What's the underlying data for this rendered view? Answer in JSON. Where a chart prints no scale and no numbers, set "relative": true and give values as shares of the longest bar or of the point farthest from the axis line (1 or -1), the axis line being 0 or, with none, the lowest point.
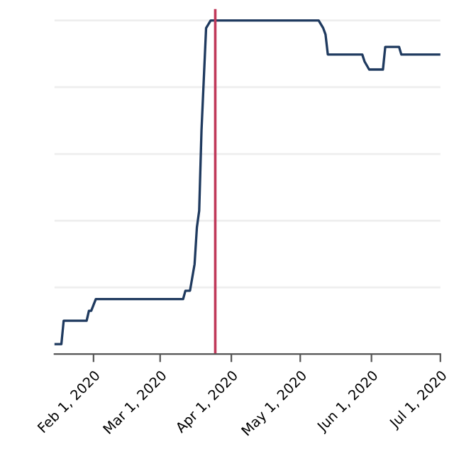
{
  "chart_data": {
    "type": "line",
    "relative": true,
    "grid": "y",
    "x": [
      "2020-01-15",
      "2020-01-18",
      "2020-01-19",
      "2020-01-29",
      "2020-01-30",
      "2020-01-31",
      "2020-02-02",
      "2020-03-11",
      "2020-03-12",
      "2020-03-14",
      "2020-03-16",
      "2020-03-17",
      "2020-03-18",
      "2020-03-19",
      "2020-03-21",
      "2020-03-23",
      "2020-05-09",
      "2020-05-11",
      "2020-05-12",
      "2020-05-13",
      "2020-05-28",
      "2020-05-29",
      "2020-05-31",
      "2020-06-06",
      "2020-06-07",
      "2020-06-13",
      "2020-06-14",
      "2020-07-01"
    ],
    "series": [
      {
        "color": "#1f3a5f",
        "values": [
          0.03,
          0.03,
          0.1,
          0.1,
          0.13,
          0.13,
          0.165,
          0.165,
          0.19,
          0.19,
          0.27,
          0.38,
          0.43,
          0.67,
          0.977,
          1,
          1,
          0.977,
          0.958,
          0.898,
          0.898,
          0.877,
          0.853,
          0.853,
          0.921,
          0.921,
          0.898,
          0.898
        ]
      }
    ],
    "xlim": [
      "2020-01-15",
      "2020-07-01"
    ],
    "xticks": [
      {
        "value": "2020-02-01",
        "label": "Feb 1, 2020"
      },
      {
        "value": "2020-03-01",
        "label": "Mar 1, 2020"
      },
      {
        "value": "2020-04-01",
        "label": "Apr 1, 2020"
      },
      {
        "value": "2020-05-01",
        "label": "May 1, 2020"
      },
      {
        "value": "2020-06-01",
        "label": "Jun 1, 2020"
      },
      {
        "value": "2020-07-01",
        "label": "Jul 1, 2020"
      }
    ],
    "ref_lines": [
      {
        "axis": "x",
        "value": "2020-03-25",
        "color": "#c0395a"
      }
    ]
  }
}
